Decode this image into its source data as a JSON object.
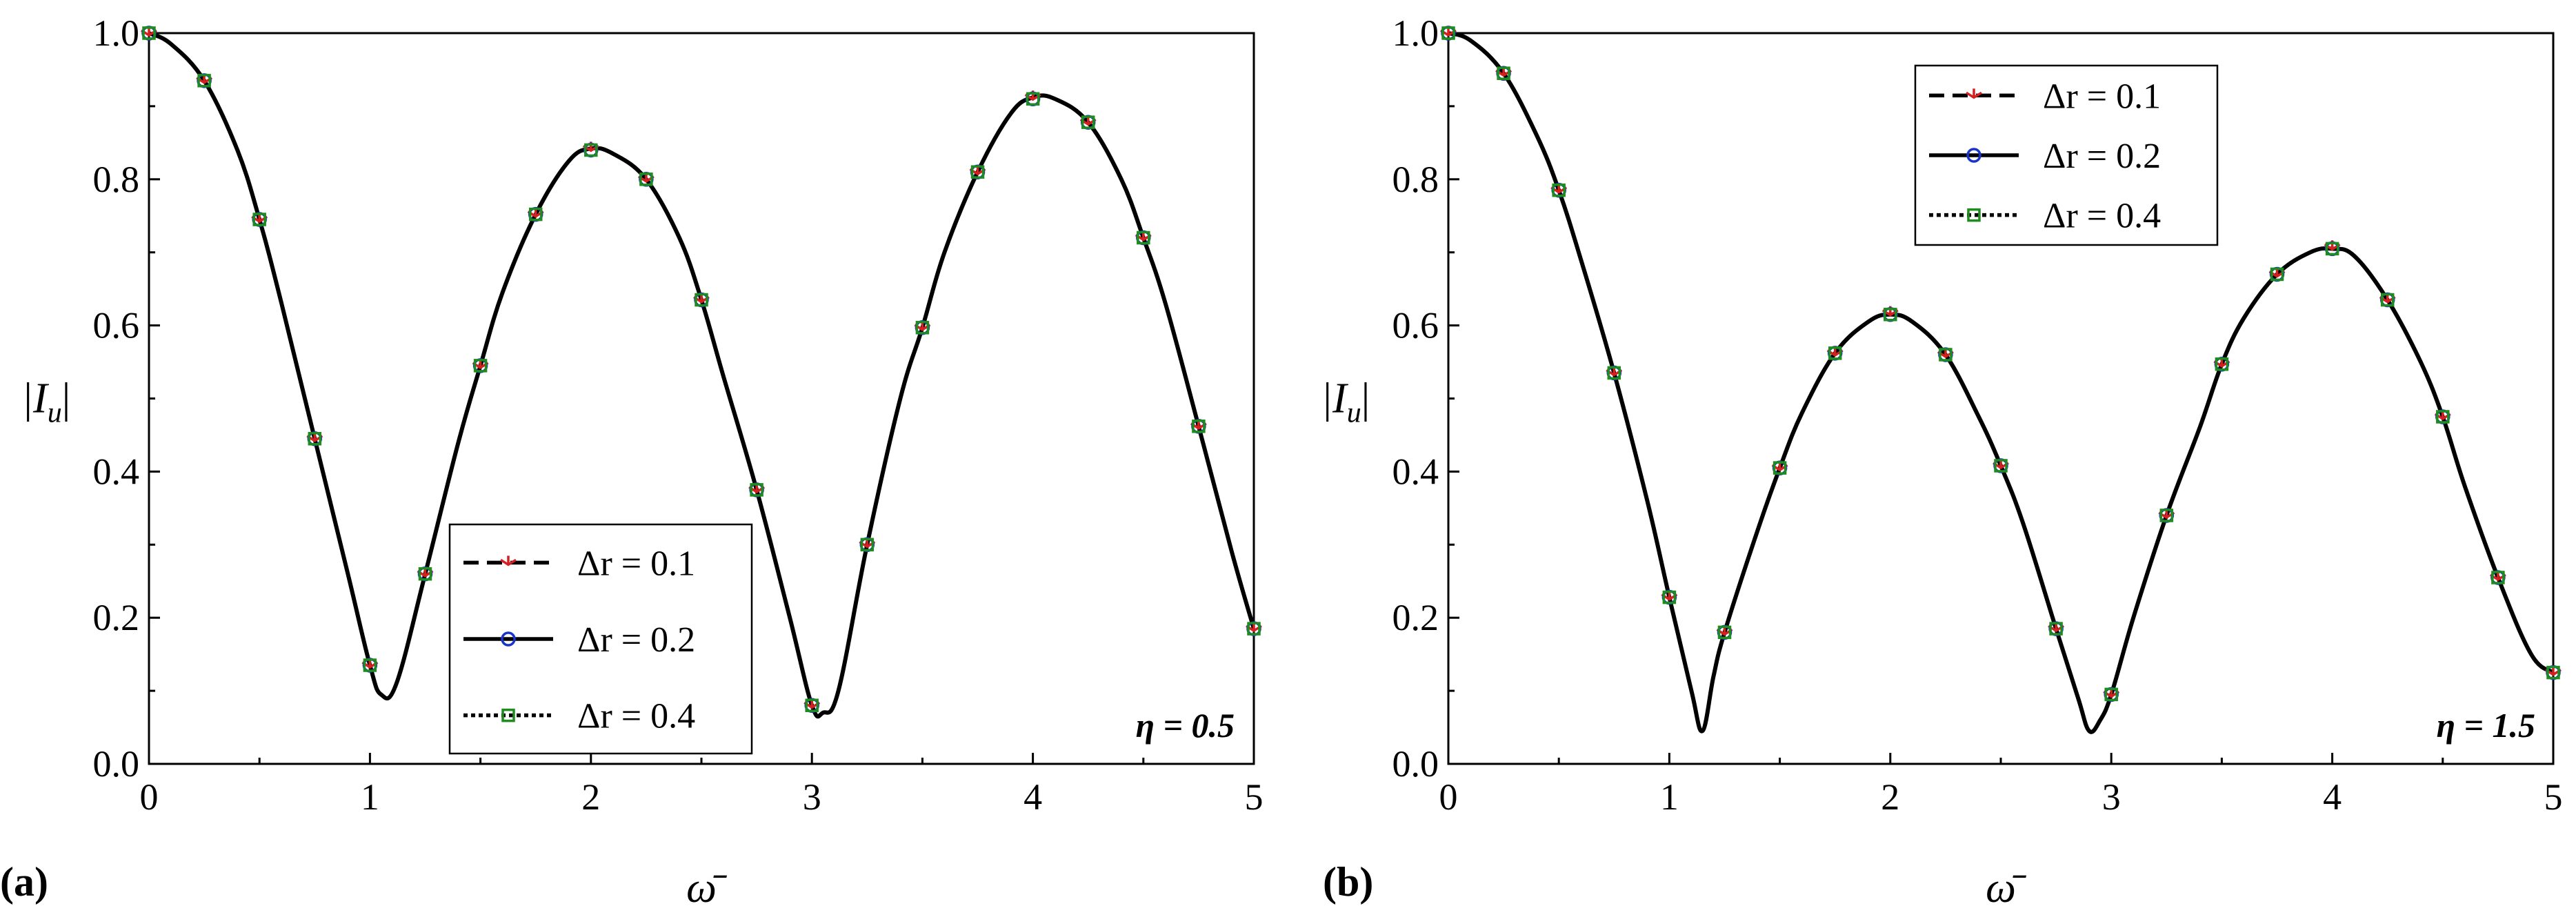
{
  "chart_data": [
    {
      "type": "line",
      "panel_label": "(a)",
      "annotation": "η = 0.5",
      "xlabel": "ω̄",
      "ylabel_main": "|I",
      "ylabel_sub": "u",
      "ylabel_end": "|",
      "xlim": [
        0,
        5
      ],
      "ylim": [
        0,
        1.0
      ],
      "x_ticks": [
        0,
        1,
        2,
        3,
        4,
        5
      ],
      "x_tick_labels": [
        "0",
        "1",
        "2",
        "3",
        "4",
        "5"
      ],
      "y_ticks": [
        0,
        0.2,
        0.4,
        0.6,
        0.8,
        1.0
      ],
      "y_tick_labels": [
        "0.0",
        "0.2",
        "0.4",
        "0.6",
        "0.8",
        "1.0"
      ],
      "legend_position": "bottom-center",
      "legend": [
        "Δr = 0.1",
        "Δr = 0.2",
        "Δr = 0.4"
      ],
      "curve": {
        "x": [
          0,
          0.1,
          0.25,
          0.4,
          0.5,
          0.6,
          0.75,
          0.9,
          1.0,
          1.05,
          1.12,
          1.25,
          1.4,
          1.5,
          1.6,
          1.75,
          1.9,
          2.0,
          2.1,
          2.25,
          2.4,
          2.5,
          2.6,
          2.75,
          2.9,
          3.0,
          3.05,
          3.12,
          3.25,
          3.4,
          3.5,
          3.6,
          3.75,
          3.9,
          4.0,
          4.1,
          4.25,
          4.4,
          4.5,
          4.6,
          4.75,
          4.9,
          5.0
        ],
        "y": [
          1.0,
          0.985,
          0.935,
          0.84,
          0.745,
          0.63,
          0.445,
          0.26,
          0.135,
          0.095,
          0.11,
          0.26,
          0.44,
          0.545,
          0.645,
          0.752,
          0.825,
          0.842,
          0.835,
          0.8,
          0.72,
          0.635,
          0.53,
          0.375,
          0.2,
          0.08,
          0.07,
          0.1,
          0.3,
          0.5,
          0.597,
          0.7,
          0.81,
          0.89,
          0.912,
          0.91,
          0.878,
          0.8,
          0.72,
          0.63,
          0.462,
          0.29,
          0.185
        ]
      },
      "series": [
        {
          "marker": "tri-down",
          "color": "#d42020",
          "line": "dashed",
          "x": [
            0,
            0.25,
            0.5,
            0.75,
            1.0,
            1.25,
            1.5,
            1.75,
            2.0,
            2.25,
            2.5,
            2.75,
            3.0,
            3.25,
            3.5,
            3.75,
            4.0,
            4.25,
            4.5,
            4.75,
            5.0
          ],
          "y": [
            1.0,
            0.935,
            0.745,
            0.445,
            0.135,
            0.26,
            0.545,
            0.752,
            0.842,
            0.8,
            0.635,
            0.375,
            0.08,
            0.3,
            0.597,
            0.81,
            0.912,
            0.878,
            0.72,
            0.462,
            0.185
          ]
        },
        {
          "marker": "circle",
          "color": "#1a33c8",
          "line": "solid",
          "x": [
            0,
            0.25,
            0.5,
            0.75,
            1.0,
            1.25,
            1.5,
            1.75,
            2.0,
            2.25,
            2.5,
            2.75,
            3.0,
            3.25,
            3.5,
            3.75,
            4.0,
            4.25,
            4.5,
            4.75,
            5.0
          ],
          "y": [
            1.0,
            0.935,
            0.745,
            0.445,
            0.135,
            0.26,
            0.545,
            0.752,
            0.84,
            0.8,
            0.635,
            0.375,
            0.08,
            0.3,
            0.597,
            0.81,
            0.91,
            0.878,
            0.72,
            0.462,
            0.185
          ]
        },
        {
          "marker": "square",
          "color": "#1e8c1e",
          "line": "dotted",
          "x": [
            0,
            0.25,
            0.5,
            0.75,
            1.0,
            1.25,
            1.5,
            1.75,
            2.0,
            2.25,
            2.5,
            2.75,
            3.0,
            3.25,
            3.5,
            3.75,
            4.0,
            4.25,
            4.5,
            4.75,
            5.0
          ],
          "y": [
            1.0,
            0.935,
            0.745,
            0.445,
            0.135,
            0.26,
            0.545,
            0.752,
            0.84,
            0.8,
            0.635,
            0.375,
            0.08,
            0.3,
            0.597,
            0.81,
            0.91,
            0.878,
            0.72,
            0.462,
            0.185
          ]
        }
      ]
    },
    {
      "type": "line",
      "panel_label": "(b)",
      "annotation": "η = 1.5",
      "xlabel": "ω̄",
      "ylabel_main": "|I",
      "ylabel_sub": "u",
      "ylabel_end": "|",
      "xlim": [
        0,
        5
      ],
      "ylim": [
        0,
        1.0
      ],
      "x_ticks": [
        0,
        1,
        2,
        3,
        4,
        5
      ],
      "x_tick_labels": [
        "0",
        "1",
        "2",
        "3",
        "4",
        "5"
      ],
      "y_ticks": [
        0,
        0.2,
        0.4,
        0.6,
        0.8,
        1.0
      ],
      "y_tick_labels": [
        "0.0",
        "0.2",
        "0.4",
        "0.6",
        "0.8",
        "1.0"
      ],
      "legend_position": "top-right",
      "legend": [
        "Δr = 0.1",
        "Δr = 0.2",
        "Δr = 0.4"
      ],
      "curve": {
        "x": [
          0,
          0.1,
          0.25,
          0.4,
          0.5,
          0.6,
          0.75,
          0.9,
          1.0,
          1.1,
          1.15,
          1.2,
          1.25,
          1.4,
          1.5,
          1.6,
          1.75,
          1.9,
          2.0,
          2.1,
          2.25,
          2.4,
          2.5,
          2.6,
          2.75,
          2.85,
          2.9,
          2.95,
          3.0,
          3.1,
          3.25,
          3.4,
          3.5,
          3.6,
          3.75,
          3.9,
          4.0,
          4.1,
          4.25,
          4.4,
          4.5,
          4.6,
          4.75,
          4.9,
          5.0
        ],
        "y": [
          1.0,
          0.99,
          0.945,
          0.86,
          0.785,
          0.69,
          0.535,
          0.36,
          0.228,
          0.1,
          0.045,
          0.12,
          0.18,
          0.32,
          0.405,
          0.48,
          0.562,
          0.605,
          0.615,
          0.605,
          0.56,
          0.475,
          0.408,
          0.33,
          0.185,
          0.09,
          0.045,
          0.06,
          0.095,
          0.2,
          0.34,
          0.46,
          0.547,
          0.61,
          0.67,
          0.7,
          0.705,
          0.695,
          0.635,
          0.55,
          0.475,
          0.38,
          0.255,
          0.15,
          0.125
        ]
      },
      "series": [
        {
          "marker": "tri-down",
          "color": "#d42020",
          "line": "dashed",
          "x": [
            0,
            0.25,
            0.5,
            0.75,
            1.0,
            1.25,
            1.5,
            1.75,
            2.0,
            2.25,
            2.5,
            2.75,
            3.0,
            3.25,
            3.5,
            3.75,
            4.0,
            4.25,
            4.5,
            4.75,
            5.0
          ],
          "y": [
            1.0,
            0.945,
            0.785,
            0.535,
            0.228,
            0.18,
            0.405,
            0.562,
            0.617,
            0.56,
            0.408,
            0.185,
            0.095,
            0.34,
            0.547,
            0.67,
            0.707,
            0.635,
            0.475,
            0.255,
            0.125
          ]
        },
        {
          "marker": "circle",
          "color": "#1a33c8",
          "line": "solid",
          "x": [
            0,
            0.25,
            0.5,
            0.75,
            1.0,
            1.25,
            1.5,
            1.75,
            2.0,
            2.25,
            2.5,
            2.75,
            3.0,
            3.25,
            3.5,
            3.75,
            4.0,
            4.25,
            4.5,
            4.75,
            5.0
          ],
          "y": [
            1.0,
            0.945,
            0.785,
            0.535,
            0.228,
            0.18,
            0.405,
            0.562,
            0.615,
            0.56,
            0.408,
            0.185,
            0.095,
            0.34,
            0.547,
            0.67,
            0.705,
            0.635,
            0.475,
            0.255,
            0.125
          ]
        },
        {
          "marker": "square",
          "color": "#1e8c1e",
          "line": "dotted",
          "x": [
            0,
            0.25,
            0.5,
            0.75,
            1.0,
            1.25,
            1.5,
            1.75,
            2.0,
            2.25,
            2.5,
            2.75,
            3.0,
            3.25,
            3.5,
            3.75,
            4.0,
            4.25,
            4.5,
            4.75,
            5.0
          ],
          "y": [
            1.0,
            0.945,
            0.785,
            0.535,
            0.228,
            0.18,
            0.405,
            0.562,
            0.615,
            0.56,
            0.408,
            0.185,
            0.095,
            0.34,
            0.547,
            0.67,
            0.705,
            0.635,
            0.475,
            0.255,
            0.125
          ]
        }
      ]
    }
  ]
}
